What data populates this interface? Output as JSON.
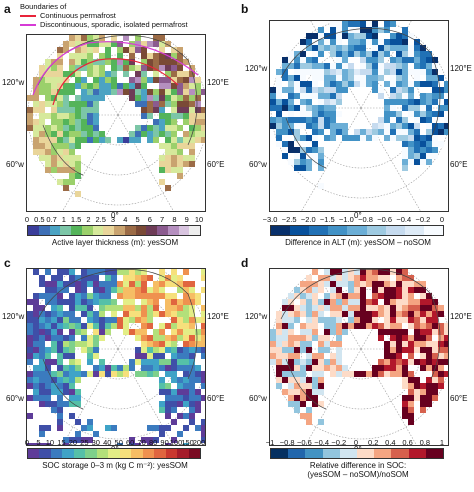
{
  "panels": [
    {
      "label": "a",
      "caption": "Active layer thickness (m): yesSOM",
      "ticks": [
        "0",
        "0.5",
        "0.7",
        "1",
        "1.5",
        "2",
        "2.5",
        "3",
        "4",
        "5",
        "6",
        "7",
        "8",
        "9",
        "10"
      ],
      "colors": [
        "#3a3d9a",
        "#3d6fb6",
        "#4ba3c3",
        "#7cc6a7",
        "#54b45a",
        "#9bd06b",
        "#d6e99b",
        "#e9d59a",
        "#c9a36f",
        "#9b6b46",
        "#7a4a36",
        "#6e3c57",
        "#8b5b8f",
        "#b58fbf",
        "#d8c4df",
        "#eeeeee"
      ],
      "lon_left_top": "120°w",
      "lon_right_top": "120°E",
      "lon_left_bot": "60°w",
      "lon_right_bot": "60°E",
      "lon_bottom": "0°"
    },
    {
      "label": "b",
      "caption": "Difference in ALT (m): yesSOM – noSOM",
      "ticks": [
        "−3.0",
        "−2.5",
        "−2.0",
        "−1.5",
        "−1.0",
        "−0.8",
        "−0.6",
        "−0.4",
        "−0.2",
        "0"
      ],
      "colors": [
        "#08306b",
        "#08519c",
        "#2171b5",
        "#4292c6",
        "#6baed6",
        "#9ecae1",
        "#c6dbef",
        "#deebf7",
        "#f7fbff"
      ],
      "lon_left_top": "120°w",
      "lon_right_top": "120°E",
      "lon_left_bot": "60°w",
      "lon_right_bot": "60°E",
      "lon_bottom": "0°"
    },
    {
      "label": "c",
      "caption": "SOC storage 0–3 m (kg C m⁻²): yesSOM",
      "ticks": [
        "0",
        "5",
        "10",
        "15",
        "20",
        "25",
        "30",
        "40",
        "50",
        "60",
        "70",
        "80",
        "90",
        "100",
        "150",
        "200"
      ],
      "colors": [
        "#5e3c99",
        "#3f4fa8",
        "#3b7bbf",
        "#3fa3c7",
        "#55c0a8",
        "#7ed08b",
        "#b3e07a",
        "#e3ee86",
        "#f6e07c",
        "#f6bd64",
        "#ef914f",
        "#e0653f",
        "#c9382f",
        "#a51c2a",
        "#7a0a22"
      ],
      "lon_left_top": "120°w",
      "lon_right_top": "120°E",
      "lon_left_bot": "60°w",
      "lon_right_bot": "60°E",
      "lon_bottom": "0°"
    },
    {
      "label": "d",
      "caption": "Relative difference in SOC:",
      "caption2": "(yesSOM – noSOM)/noSOM",
      "ticks": [
        "−1",
        "−0.8",
        "−0.6",
        "−0.4",
        "−0.2",
        "0",
        "0.2",
        "0.4",
        "0.6",
        "0.8",
        "1"
      ],
      "colors": [
        "#053061",
        "#2166ac",
        "#4393c3",
        "#92c5de",
        "#d1e5f0",
        "#fddbc7",
        "#f4a582",
        "#d6604d",
        "#b2182b",
        "#67001f"
      ],
      "lon_left_top": "120°w",
      "lon_right_top": "120°E",
      "lon_left_bot": "60°w",
      "lon_right_bot": "60°E",
      "lon_bottom": "0°"
    }
  ],
  "legend": {
    "title": "Boundaries of",
    "items": [
      {
        "label": "Continuous permafrost",
        "color": "#e8243a"
      },
      {
        "label": "Discontinuous, sporadic, isolated permafrost",
        "color": "#d63bd6"
      }
    ]
  }
}
